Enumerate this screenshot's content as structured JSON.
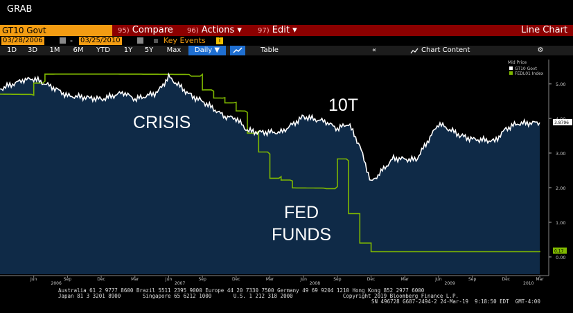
{
  "app": {
    "title": "GRAB"
  },
  "command_bar": {
    "ticker": "GT10 Govt",
    "compare": {
      "num": "95)",
      "label": "Compare"
    },
    "actions": {
      "num": "96)",
      "label": "Actions ▾"
    },
    "edit": {
      "num": "97)",
      "label": "Edit ▾"
    },
    "chart_type": "Line Chart"
  },
  "date_range": {
    "start": "03/28/2006",
    "dash": "-",
    "end": "03/25/2010",
    "key_events": "Key Events"
  },
  "toolbar": {
    "periods": [
      "1D",
      "3D",
      "1M",
      "6M",
      "YTD",
      "1Y",
      "5Y",
      "Max"
    ],
    "frequency": "Daily ▼",
    "table": "Table",
    "collapse": "«",
    "chart_content": "Chart Content",
    "settings": "⚙"
  },
  "colors": {
    "accent_orange": "#f39c12",
    "cmd_bar": "#8b0000",
    "plot_bg": "#0f2a47",
    "series_10y": "#ffffff",
    "series_fed": "#7fb800"
  },
  "chart_data": {
    "type": "area",
    "legend_title": "Mid Price",
    "legend_placement": "top-right",
    "grid": false,
    "ylim": [
      -0.5,
      5.7
    ],
    "y_ticks": [
      "5.00",
      "4.00",
      "3.00",
      "2.00",
      "1.00",
      "0.00"
    ],
    "x_month_labels": [
      "Jun",
      "Sep",
      "Dec",
      "Mar",
      "Jun",
      "Sep",
      "Dec",
      "Mar",
      "Jun",
      "Sep",
      "Dec",
      "Mar",
      "Jun",
      "Sep",
      "Dec",
      "Mar"
    ],
    "x_year_labels": [
      "2006",
      "2007",
      "2008",
      "2009",
      "2010"
    ],
    "annotations": [
      "CRISIS",
      "10T",
      "FED",
      "FUNDS"
    ],
    "last_values": {
      "GT10 Govt": "3.8796",
      "FEDL01 Index": "0.17"
    },
    "series": [
      {
        "name": "GT10 Govt",
        "color": "#ffffff",
        "x": [
          "2006-03",
          "2006-05",
          "2006-06",
          "2006-08",
          "2006-09",
          "2006-11",
          "2006-12",
          "2007-02",
          "2007-03",
          "2007-05",
          "2007-06",
          "2007-08",
          "2007-09",
          "2007-11",
          "2007-12",
          "2008-01",
          "2008-02",
          "2008-04",
          "2008-06",
          "2008-08",
          "2008-09",
          "2008-10",
          "2008-11",
          "2008-12",
          "2009-01",
          "2009-02",
          "2009-04",
          "2009-06",
          "2009-08",
          "2009-09",
          "2009-11",
          "2009-12",
          "2010-01",
          "2010-03"
        ],
        "values": [
          4.85,
          5.1,
          5.15,
          4.85,
          4.65,
          4.6,
          4.55,
          4.75,
          4.55,
          4.75,
          5.2,
          4.65,
          4.5,
          4.05,
          4.0,
          3.65,
          3.6,
          3.6,
          4.05,
          3.9,
          3.7,
          3.85,
          3.2,
          2.15,
          2.5,
          2.85,
          2.8,
          3.85,
          3.5,
          3.4,
          3.35,
          3.7,
          3.85,
          3.88
        ]
      },
      {
        "name": "FEDL01 Index",
        "color": "#7fb800",
        "x": [
          "2006-03",
          "2006-06",
          "2006-07",
          "2007-08",
          "2007-09",
          "2007-10",
          "2007-11",
          "2007-12",
          "2008-01",
          "2008-02",
          "2008-03",
          "2008-04",
          "2008-05",
          "2008-08",
          "2008-09",
          "2008-10",
          "2008-11",
          "2008-12",
          "2009-01",
          "2010-03"
        ],
        "values": [
          4.7,
          5.05,
          5.25,
          5.25,
          4.8,
          4.6,
          4.45,
          4.2,
          3.6,
          3.0,
          2.3,
          2.2,
          2.0,
          2.0,
          2.8,
          1.25,
          0.4,
          0.15,
          0.15,
          0.17
        ]
      }
    ]
  },
  "footer": {
    "line1": "Australia 61 2 9777 8600 Brazil 5511 2395 9000 Europe 44 20 7330 7500 Germany 49 69 9204 1210 Hong Kong 852 2977 6000",
    "line2": "Japan 81 3 3201 8900       Singapore 65 6212 1000       U.S. 1 212 318 2000                Copyright 2019 Bloomberg Finance L.P.",
    "line3": "SN 496728 G687-2494-2 24-Mar-19  9:18:50 EDT  GMT-4:00"
  }
}
